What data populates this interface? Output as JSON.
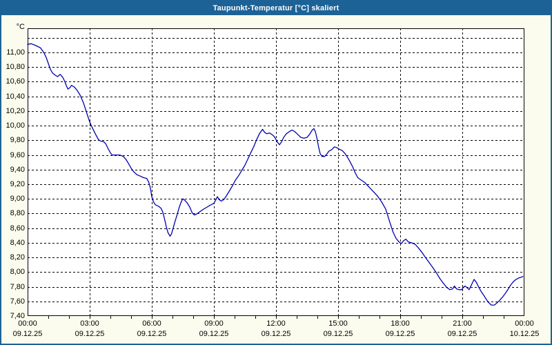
{
  "window": {
    "title": "Taupunkt-Temperatur [°C] skaliert"
  },
  "colors": {
    "frame": "#1d6296",
    "title_text": "#ffffff",
    "margin_background": "#fcfcee",
    "plot_background": "#ffffff",
    "gridline": "#000000",
    "axis": "#000000",
    "series_line": "#0000b0",
    "label_text": "#000000"
  },
  "chart_data": {
    "type": "line",
    "title": "Taupunkt-Temperatur [°C] skaliert",
    "y_unit": "°C",
    "grid": "dashed",
    "legend": "none",
    "y_axis": {
      "min": 7.4,
      "max": 11.31,
      "gridline_step": 0.2,
      "top_gridline_value": 11.2,
      "labels": [
        "11,00",
        "10,80",
        "10,60",
        "10,40",
        "10,20",
        "10,00",
        "9,80",
        "9,60",
        "9,40",
        "9,20",
        "9,00",
        "8,80",
        "8,60",
        "8,40",
        "8,20",
        "8,00",
        "7,80",
        "7,60",
        "7,40"
      ],
      "label_values": [
        11.0,
        10.8,
        10.6,
        10.4,
        10.2,
        10.0,
        9.8,
        9.6,
        9.4,
        9.2,
        9.0,
        8.8,
        8.6,
        8.4,
        8.2,
        8.0,
        7.8,
        7.6,
        7.4
      ]
    },
    "x_axis": {
      "min_hour": 0,
      "max_hour": 24,
      "major_gridline_step_hours": 3,
      "minor_tick_step_hours": 1,
      "ticks": [
        {
          "hour": 0,
          "time": "00:00",
          "date": "09.12.25"
        },
        {
          "hour": 3,
          "time": "03:00",
          "date": "09.12.25"
        },
        {
          "hour": 6,
          "time": "06:00",
          "date": "09.12.25"
        },
        {
          "hour": 9,
          "time": "09:00",
          "date": "09.12.25"
        },
        {
          "hour": 12,
          "time": "12:00",
          "date": "09.12.25"
        },
        {
          "hour": 15,
          "time": "15:00",
          "date": "09.12.25"
        },
        {
          "hour": 18,
          "time": "18:00",
          "date": "09.12.25"
        },
        {
          "hour": 21,
          "time": "21:00",
          "date": "09.12.25"
        },
        {
          "hour": 24,
          "time": "00:00",
          "date": "10.12.25"
        }
      ]
    },
    "series": [
      {
        "name": "Taupunkt-Temperatur",
        "color": "#0000b0",
        "points": [
          [
            0,
            11.11
          ],
          [
            0.17,
            11.12
          ],
          [
            0.35,
            11.1
          ],
          [
            0.5,
            11.08
          ],
          [
            0.63,
            11.06
          ],
          [
            0.78,
            11.0
          ],
          [
            0.9,
            10.93
          ],
          [
            1.0,
            10.85
          ],
          [
            1.1,
            10.77
          ],
          [
            1.2,
            10.72
          ],
          [
            1.33,
            10.69
          ],
          [
            1.45,
            10.67
          ],
          [
            1.57,
            10.7
          ],
          [
            1.7,
            10.66
          ],
          [
            1.8,
            10.6
          ],
          [
            1.88,
            10.54
          ],
          [
            1.95,
            10.5
          ],
          [
            2.05,
            10.52
          ],
          [
            2.12,
            10.55
          ],
          [
            2.25,
            10.53
          ],
          [
            2.4,
            10.48
          ],
          [
            2.55,
            10.41
          ],
          [
            2.7,
            10.31
          ],
          [
            2.85,
            10.18
          ],
          [
            3.0,
            10.05
          ],
          [
            3.13,
            9.97
          ],
          [
            3.27,
            9.89
          ],
          [
            3.42,
            9.81
          ],
          [
            3.52,
            9.79
          ],
          [
            3.68,
            9.78
          ],
          [
            3.78,
            9.75
          ],
          [
            3.9,
            9.68
          ],
          [
            4.0,
            9.63
          ],
          [
            4.08,
            9.6
          ],
          [
            4.25,
            9.6
          ],
          [
            4.45,
            9.6
          ],
          [
            4.62,
            9.58
          ],
          [
            4.75,
            9.54
          ],
          [
            4.88,
            9.48
          ],
          [
            5.0,
            9.42
          ],
          [
            5.13,
            9.37
          ],
          [
            5.28,
            9.33
          ],
          [
            5.45,
            9.31
          ],
          [
            5.6,
            9.29
          ],
          [
            5.75,
            9.28
          ],
          [
            5.85,
            9.23
          ],
          [
            5.93,
            9.15
          ],
          [
            6.0,
            9.03
          ],
          [
            6.08,
            8.96
          ],
          [
            6.17,
            8.92
          ],
          [
            6.32,
            8.9
          ],
          [
            6.45,
            8.87
          ],
          [
            6.53,
            8.82
          ],
          [
            6.62,
            8.72
          ],
          [
            6.7,
            8.62
          ],
          [
            6.78,
            8.54
          ],
          [
            6.88,
            8.49
          ],
          [
            6.95,
            8.52
          ],
          [
            7.03,
            8.6
          ],
          [
            7.12,
            8.69
          ],
          [
            7.22,
            8.78
          ],
          [
            7.32,
            8.88
          ],
          [
            7.42,
            8.96
          ],
          [
            7.5,
            9.0
          ],
          [
            7.6,
            8.98
          ],
          [
            7.72,
            8.94
          ],
          [
            7.83,
            8.89
          ],
          [
            7.95,
            8.81
          ],
          [
            8.05,
            8.78
          ],
          [
            8.15,
            8.79
          ],
          [
            8.3,
            8.82
          ],
          [
            8.45,
            8.85
          ],
          [
            8.62,
            8.88
          ],
          [
            8.8,
            8.91
          ],
          [
            9.0,
            8.94
          ],
          [
            9.1,
            8.99
          ],
          [
            9.17,
            9.03
          ],
          [
            9.25,
            8.99
          ],
          [
            9.35,
            8.97
          ],
          [
            9.48,
            8.99
          ],
          [
            9.6,
            9.04
          ],
          [
            9.75,
            9.11
          ],
          [
            9.9,
            9.18
          ],
          [
            10.05,
            9.26
          ],
          [
            10.2,
            9.32
          ],
          [
            10.35,
            9.39
          ],
          [
            10.5,
            9.46
          ],
          [
            10.65,
            9.55
          ],
          [
            10.8,
            9.64
          ],
          [
            10.92,
            9.71
          ],
          [
            11.05,
            9.8
          ],
          [
            11.2,
            9.89
          ],
          [
            11.35,
            9.95
          ],
          [
            11.45,
            9.91
          ],
          [
            11.55,
            9.89
          ],
          [
            11.68,
            9.9
          ],
          [
            11.8,
            9.88
          ],
          [
            11.92,
            9.85
          ],
          [
            12.0,
            9.81
          ],
          [
            12.08,
            9.77
          ],
          [
            12.17,
            9.74
          ],
          [
            12.27,
            9.78
          ],
          [
            12.37,
            9.84
          ],
          [
            12.5,
            9.89
          ],
          [
            12.65,
            9.92
          ],
          [
            12.78,
            9.94
          ],
          [
            12.9,
            9.92
          ],
          [
            13.05,
            9.88
          ],
          [
            13.2,
            9.84
          ],
          [
            13.35,
            9.83
          ],
          [
            13.5,
            9.84
          ],
          [
            13.62,
            9.88
          ],
          [
            13.75,
            9.94
          ],
          [
            13.83,
            9.96
          ],
          [
            13.9,
            9.92
          ],
          [
            13.97,
            9.84
          ],
          [
            14.05,
            9.72
          ],
          [
            14.13,
            9.62
          ],
          [
            14.22,
            9.58
          ],
          [
            14.35,
            9.58
          ],
          [
            14.45,
            9.61
          ],
          [
            14.55,
            9.65
          ],
          [
            14.68,
            9.67
          ],
          [
            14.82,
            9.71
          ],
          [
            14.93,
            9.7
          ],
          [
            15.05,
            9.68
          ],
          [
            15.2,
            9.66
          ],
          [
            15.33,
            9.62
          ],
          [
            15.45,
            9.57
          ],
          [
            15.57,
            9.51
          ],
          [
            15.7,
            9.44
          ],
          [
            15.82,
            9.36
          ],
          [
            15.95,
            9.29
          ],
          [
            16.1,
            9.26
          ],
          [
            16.3,
            9.22
          ],
          [
            16.5,
            9.16
          ],
          [
            16.7,
            9.1
          ],
          [
            16.9,
            9.04
          ],
          [
            17.1,
            8.96
          ],
          [
            17.3,
            8.86
          ],
          [
            17.5,
            8.68
          ],
          [
            17.65,
            8.55
          ],
          [
            17.8,
            8.46
          ],
          [
            17.95,
            8.41
          ],
          [
            18.05,
            8.39
          ],
          [
            18.17,
            8.43
          ],
          [
            18.27,
            8.45
          ],
          [
            18.4,
            8.41
          ],
          [
            18.55,
            8.4
          ],
          [
            18.72,
            8.38
          ],
          [
            18.88,
            8.33
          ],
          [
            19.05,
            8.27
          ],
          [
            19.22,
            8.2
          ],
          [
            19.4,
            8.13
          ],
          [
            19.58,
            8.06
          ],
          [
            19.75,
            7.99
          ],
          [
            19.92,
            7.91
          ],
          [
            20.08,
            7.85
          ],
          [
            20.25,
            7.79
          ],
          [
            20.4,
            7.76
          ],
          [
            20.53,
            7.77
          ],
          [
            20.62,
            7.81
          ],
          [
            20.72,
            7.77
          ],
          [
            20.85,
            7.76
          ],
          [
            20.97,
            7.76
          ],
          [
            21.05,
            7.79
          ],
          [
            21.13,
            7.81
          ],
          [
            21.22,
            7.79
          ],
          [
            21.33,
            7.76
          ],
          [
            21.45,
            7.83
          ],
          [
            21.57,
            7.9
          ],
          [
            21.68,
            7.86
          ],
          [
            21.8,
            7.79
          ],
          [
            21.92,
            7.73
          ],
          [
            22.02,
            7.69
          ],
          [
            22.13,
            7.64
          ],
          [
            22.25,
            7.59
          ],
          [
            22.4,
            7.55
          ],
          [
            22.55,
            7.55
          ],
          [
            22.68,
            7.58
          ],
          [
            22.82,
            7.62
          ],
          [
            22.95,
            7.66
          ],
          [
            23.08,
            7.71
          ],
          [
            23.2,
            7.76
          ],
          [
            23.33,
            7.82
          ],
          [
            23.47,
            7.87
          ],
          [
            23.6,
            7.9
          ],
          [
            23.73,
            7.92
          ],
          [
            23.85,
            7.93
          ],
          [
            23.93,
            7.94
          ]
        ]
      }
    ]
  }
}
